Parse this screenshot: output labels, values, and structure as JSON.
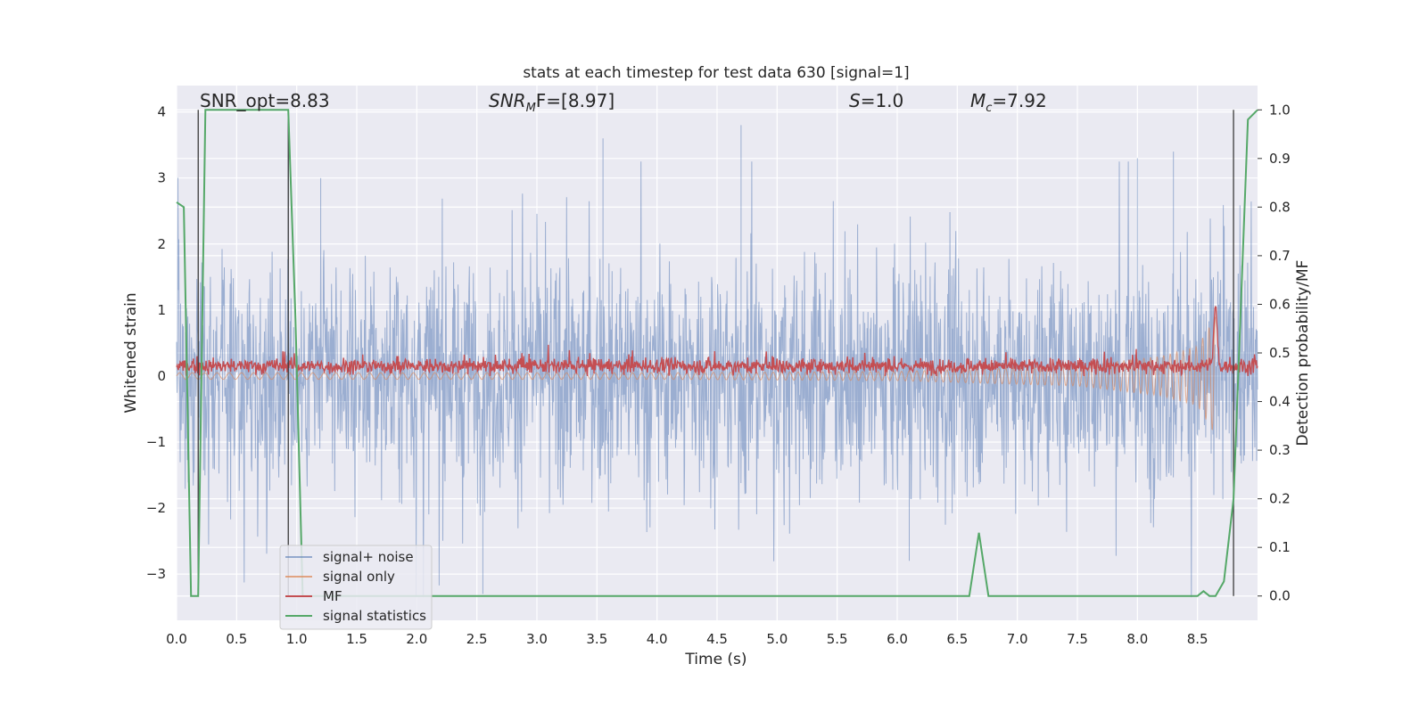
{
  "chart_data": {
    "type": "line",
    "title": "stats at each timestep for test data 630 [signal=1]",
    "xlabel": "Time (s)",
    "ylabel_left": "Whitened strain",
    "ylabel_right": "Detection probability/MF",
    "xlim": [
      0.0,
      9.0
    ],
    "ylim_left": [
      -3.7,
      4.4
    ],
    "ylim_right": [
      -0.05,
      1.05
    ],
    "x_ticks": [
      "0.0",
      "0.5",
      "1.0",
      "1.5",
      "2.0",
      "2.5",
      "3.0",
      "3.5",
      "4.0",
      "4.5",
      "5.0",
      "5.5",
      "6.0",
      "6.5",
      "7.0",
      "7.5",
      "8.0",
      "8.5"
    ],
    "y_ticks_left": [
      "−3",
      "−2",
      "−1",
      "0",
      "1",
      "2",
      "3",
      "4"
    ],
    "y_ticks_right": [
      "0.0",
      "0.1",
      "0.2",
      "0.3",
      "0.4",
      "0.5",
      "0.6",
      "0.7",
      "0.8",
      "0.9",
      "1.0"
    ],
    "annotations": {
      "snr_opt": "SNR_opt=8.83",
      "snr_mf_base": "SNR",
      "snr_mf_sub": "M",
      "snr_mf_rest": "F=[8.97]",
      "s_var": "S",
      "s_rest": "=1.0",
      "mc_var": "M",
      "mc_sub": "c",
      "mc_rest": "=7.92"
    },
    "vertical_lines_x": [
      0.18,
      0.93,
      8.8
    ],
    "legend": {
      "placement": "lower-left",
      "entries": [
        "signal+ noise",
        "signal only",
        "MF",
        "signal statistics"
      ]
    },
    "colors": {
      "signal_noise": "#4c72b0",
      "signal_only": "#dd8452",
      "mf": "#c44e52",
      "signal_statistics": "#55a868",
      "axes_bg": "#eaeaf2",
      "vline": "#3b3b3b"
    },
    "series": [
      {
        "name": "signal statistics",
        "axis": "right",
        "points": [
          [
            0.0,
            0.81
          ],
          [
            0.06,
            0.8
          ],
          [
            0.12,
            0.0
          ],
          [
            0.18,
            0.0
          ],
          [
            0.24,
            1.0
          ],
          [
            0.5,
            1.0
          ],
          [
            0.93,
            1.0
          ],
          [
            0.99,
            0.57
          ],
          [
            1.05,
            0.0
          ],
          [
            6.5,
            0.0
          ],
          [
            6.6,
            0.0
          ],
          [
            6.68,
            0.13
          ],
          [
            6.76,
            0.0
          ],
          [
            8.5,
            0.0
          ],
          [
            8.55,
            0.01
          ],
          [
            8.6,
            0.0
          ],
          [
            8.65,
            0.0
          ],
          [
            8.72,
            0.03
          ],
          [
            8.8,
            0.2
          ],
          [
            8.92,
            0.98
          ],
          [
            9.0,
            1.0
          ]
        ]
      },
      {
        "name": "MF",
        "axis": "left",
        "description_level": "oscillates around 0.15 with amplitude about 0.1, spike to 1.05 near 8.65 s"
      },
      {
        "name": "signal only",
        "axis": "left",
        "envelope": [
          [
            0.0,
            0.05
          ],
          [
            4.0,
            0.05
          ],
          [
            6.0,
            0.07
          ],
          [
            7.5,
            0.15
          ],
          [
            8.2,
            0.3
          ],
          [
            8.5,
            0.45
          ],
          [
            8.65,
            0.9
          ]
        ]
      },
      {
        "name": "signal+ noise",
        "axis": "left",
        "range_typical": [
          -2.0,
          2.0
        ],
        "peaks": [
          [
            0.93,
            4.0
          ],
          [
            1.2,
            3.0
          ],
          [
            2.55,
            -3.3
          ],
          [
            3.55,
            3.6
          ],
          [
            4.7,
            3.8
          ],
          [
            6.1,
            -2.8
          ],
          [
            8.0,
            3.3
          ],
          [
            8.3,
            3.4
          ]
        ]
      }
    ]
  }
}
